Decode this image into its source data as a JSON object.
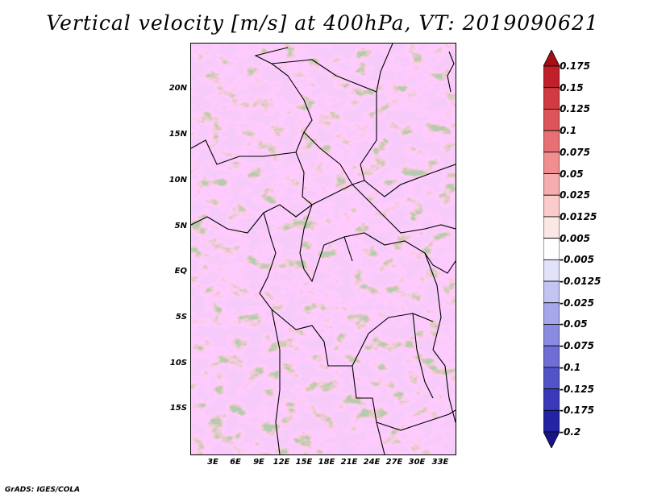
{
  "title": "Vertical velocity [m/s] at 400hPa, VT: 2019090621",
  "footer": "GrADS: IGES/COLA",
  "map": {
    "lat_labels": [
      "20N",
      "15N",
      "10N",
      "5N",
      "EQ",
      "5S",
      "10S",
      "15S"
    ],
    "lon_labels": [
      "3E",
      "6E",
      "9E",
      "12E",
      "15E",
      "18E",
      "21E",
      "24E",
      "27E",
      "30E",
      "33E"
    ]
  },
  "colorbar": {
    "labels": [
      "0.175",
      "0.15",
      "0.125",
      "0.1",
      "0.075",
      "0.05",
      "0.025",
      "0.0125",
      "0.005",
      "-0.005",
      "-0.0125",
      "-0.025",
      "-0.05",
      "-0.075",
      "-0.1",
      "-0.125",
      "-0.175",
      "-0.2"
    ],
    "colors": [
      "#a50f15",
      "#c0202a",
      "#d03a40",
      "#dd5459",
      "#e87075",
      "#f08e90",
      "#f5adad",
      "#f9cbcb",
      "#fce7e7",
      "#ffffff",
      "#e2e2fb",
      "#c4c4f3",
      "#a6a6ea",
      "#8a8ae0",
      "#6e6ed5",
      "#5353c8",
      "#3a3ab8",
      "#2323a3",
      "#16168a"
    ]
  },
  "icons": [
    "map-canvas"
  ]
}
